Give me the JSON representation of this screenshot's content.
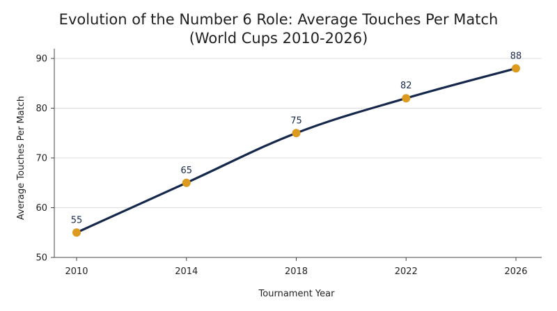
{
  "chart_data": {
    "type": "line",
    "title_line1": "Evolution of the Number 6 Role: Average Touches Per Match",
    "title_line2": "(World Cups 2010-2026)",
    "xlabel": "Tournament Year",
    "ylabel": "Average Touches Per Match",
    "categories": [
      "2010",
      "2014",
      "2018",
      "2022",
      "2026"
    ],
    "series": [
      {
        "values": [
          55,
          65,
          75,
          82,
          88
        ]
      }
    ],
    "data_labels": [
      "55",
      "65",
      "75",
      "82",
      "88"
    ],
    "ylim": [
      50,
      90
    ],
    "y_ticks": [
      50,
      60,
      70,
      80,
      90
    ],
    "y_tick_labels": [
      "50",
      "60",
      "70",
      "80",
      "90"
    ],
    "grid": true,
    "legend": "none",
    "colors": {
      "line": "#15284b",
      "marker": "#dc9a1e",
      "label": "#15284b"
    }
  }
}
